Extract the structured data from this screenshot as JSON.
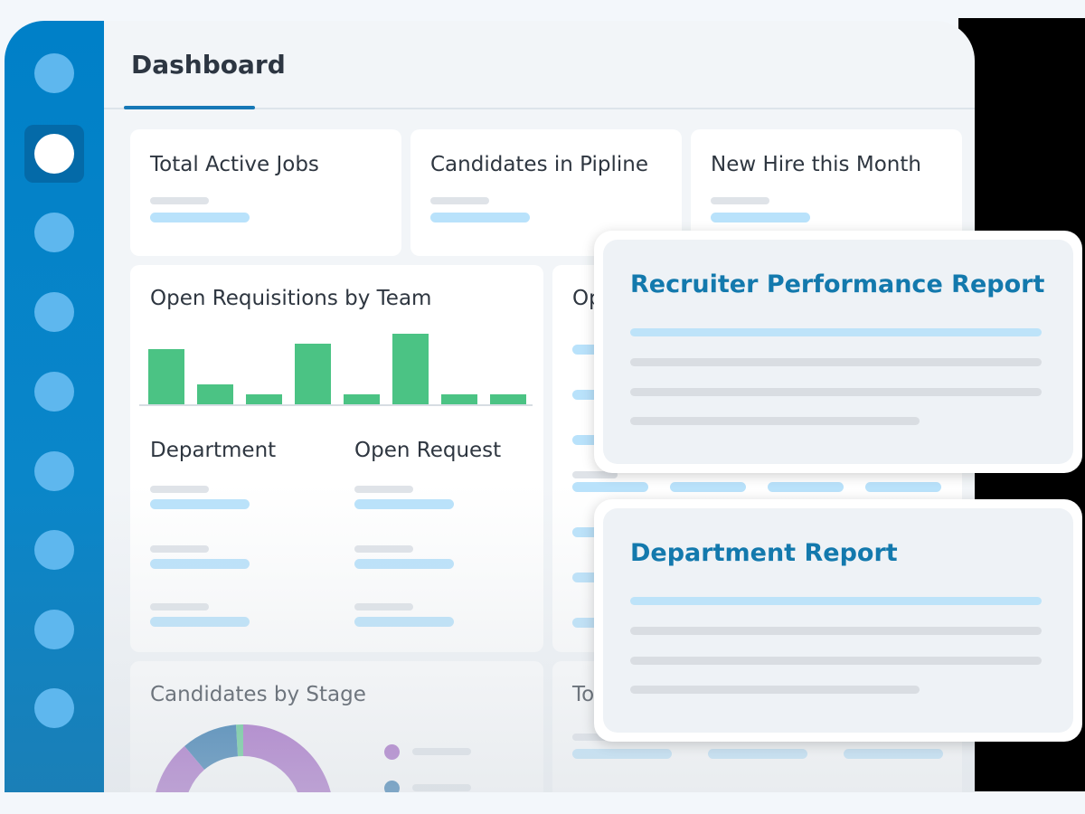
{
  "header": {
    "title": "Dashboard"
  },
  "sidebar": {
    "item_count": 9,
    "active_index": 1
  },
  "stats": [
    {
      "label": "Total Active Jobs"
    },
    {
      "label": "Candidates in Pipline"
    },
    {
      "label": "New Hire this Month"
    }
  ],
  "requisitions": {
    "title": "Open Requisitions by Team",
    "col_department": "Department",
    "col_open_request": "Open Request",
    "bar_levels": [
      0.78,
      0.28,
      0.14,
      0.86,
      0.14,
      1.0,
      0.14,
      0.14
    ]
  },
  "partial_card_top": {
    "label_fragment": "Op"
  },
  "partial_card_bottom": {
    "label_fragment": "To"
  },
  "candidates_by_stage": {
    "title": "Candidates by Stage",
    "colors": {
      "purple": "#9b59c0",
      "navy": "#1565a3",
      "green": "#4bc384"
    }
  },
  "reports": [
    {
      "title": "Recruiter Performance Report"
    },
    {
      "title": "Department Report"
    }
  ],
  "colors": {
    "sidebar": "#0080c8",
    "accent": "#1379ad",
    "bar_green": "#4bc384"
  }
}
